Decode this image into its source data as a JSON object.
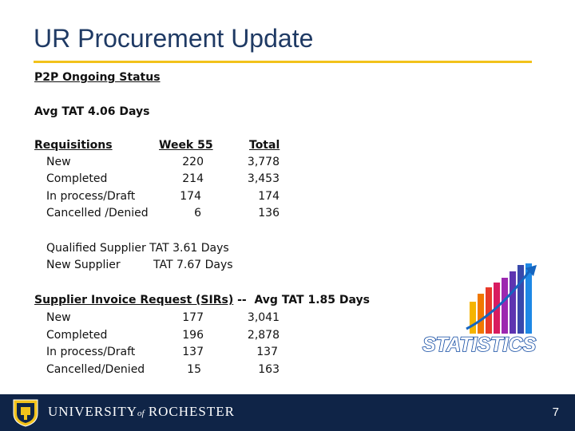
{
  "title": "UR Procurement Update",
  "section_heading": "P2P Ongoing Status",
  "avg_tat": "Avg TAT 4.06 Days",
  "requisitions": {
    "heading": "Requisitions",
    "week_header": "Week 55",
    "total_header": "Total",
    "rows": [
      {
        "label": "New",
        "week": "220",
        "total": "3,778"
      },
      {
        "label": "Completed",
        "week": "214",
        "total": "3,453"
      },
      {
        "label": "In process/Draft",
        "week": "174",
        "total": "174"
      },
      {
        "label": "Cancelled /Denied",
        "week": "6",
        "total": "136"
      }
    ]
  },
  "supplier_tat": {
    "qualified": "Qualified Supplier TAT 3.61 Days",
    "new_label": "New Supplier",
    "new_value": "TAT  7.67 Days"
  },
  "sirs": {
    "heading": "Supplier Invoice Request (SIRs)",
    "suffix": " --  Avg TAT 1.85 Days",
    "rows": [
      {
        "label": "New",
        "week": "177",
        "total": "3,041"
      },
      {
        "label": "Completed",
        "week": "196",
        "total": "2,878"
      },
      {
        "label": "In process/Draft",
        "week": "137",
        "total": "137"
      },
      {
        "label": "Cancelled/Denied",
        "week": "15",
        "total": "163"
      }
    ]
  },
  "graphic": {
    "label": "STATISTICS",
    "bar_colors": [
      "#f5b400",
      "#f07800",
      "#e83a2a",
      "#d81b60",
      "#9c27b0",
      "#5e35b1",
      "#3949ab",
      "#1e88e5"
    ]
  },
  "footer": {
    "university_main": "UNIVERSITY",
    "university_of": "of",
    "university_rest": "ROCHESTER",
    "page_number": "7"
  }
}
